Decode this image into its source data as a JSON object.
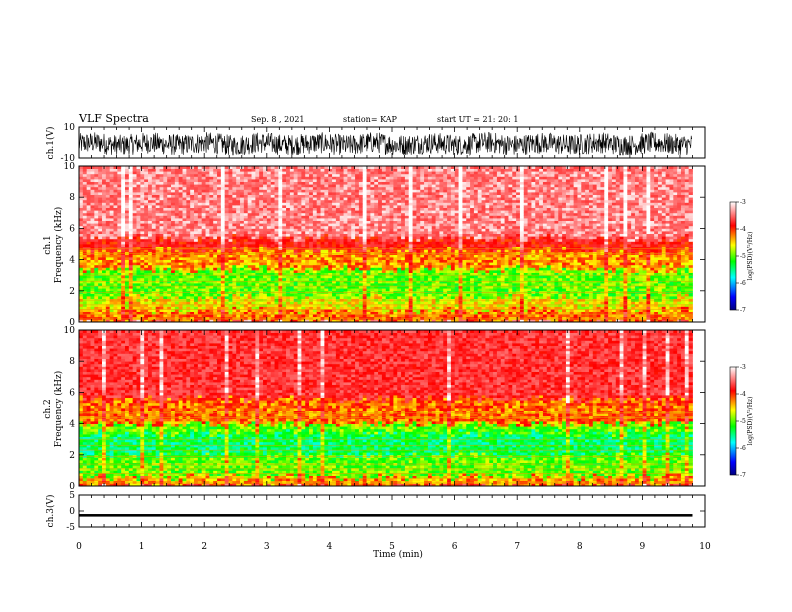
{
  "header": {
    "title": "VLF Spectra",
    "date": "Sep. 8 , 2021",
    "station": "station= KAP",
    "start": "start UT = 21: 20: 1"
  },
  "colorbar": {
    "label": "log(PSD)(V²/Hz)",
    "ticks": [
      "-3",
      "-4",
      "-5",
      "-6",
      "-7"
    ],
    "colors": [
      "#000080",
      "#0000ff",
      "#00ffff",
      "#00ff00",
      "#ffff00",
      "#ff0000",
      "#ffffff"
    ]
  },
  "chart_data": [
    {
      "type": "line",
      "panel": "ch1_waveform",
      "ylabel": "ch.1(V)",
      "ylim": [
        -10,
        10
      ],
      "yticks": [
        "10",
        "-10"
      ],
      "xlim": [
        0,
        10
      ],
      "description_values": {
        "y_range_observed": [
          -8,
          7
        ]
      }
    },
    {
      "type": "heatmap",
      "panel": "ch1_spectrogram",
      "ylabel": "ch.1\nFrequency (kHz)",
      "ylim": [
        0,
        10
      ],
      "yticks": [
        "0",
        "2",
        "4",
        "6",
        "8",
        "10"
      ],
      "xlim": [
        0,
        9.8
      ],
      "bands_khz": [
        {
          "from": 0,
          "to": 0.8,
          "level": -4.2
        },
        {
          "from": 0.8,
          "to": 1.6,
          "level": -4.6
        },
        {
          "from": 1.6,
          "to": 3.4,
          "level": -5.0
        },
        {
          "from": 3.4,
          "to": 4.6,
          "level": -4.3
        },
        {
          "from": 4.6,
          "to": 5.4,
          "level": -3.8
        },
        {
          "from": 5.4,
          "to": 10,
          "level": -3.2
        }
      ],
      "zlim": [
        -7,
        -3
      ]
    },
    {
      "type": "heatmap",
      "panel": "ch2_spectrogram",
      "ylabel": "ch.2\nFrequency (kHz)",
      "ylim": [
        0,
        10
      ],
      "yticks": [
        "0",
        "2",
        "4",
        "6",
        "8",
        "10"
      ],
      "xlim": [
        0,
        9.8
      ],
      "bands_khz": [
        {
          "from": 0,
          "to": 0.6,
          "level": -4.3
        },
        {
          "from": 0.6,
          "to": 2.0,
          "level": -5.0
        },
        {
          "from": 2.0,
          "to": 3.4,
          "level": -5.4
        },
        {
          "from": 3.4,
          "to": 4.0,
          "level": -5.0
        },
        {
          "from": 4.0,
          "to": 5.6,
          "level": -4.2
        },
        {
          "from": 5.6,
          "to": 10,
          "level": -3.6
        }
      ],
      "zlim": [
        -7,
        -3
      ]
    },
    {
      "type": "line",
      "panel": "ch3_waveform",
      "ylabel": "ch.3(V)",
      "ylim": [
        -5,
        5
      ],
      "yticks": [
        "5",
        "0",
        "-5"
      ],
      "xlim": [
        0,
        10
      ],
      "description_values": {
        "level": -1.3,
        "y_range_observed": [
          -1.8,
          -0.9
        ]
      }
    }
  ],
  "xaxis": {
    "label": "Time (min)",
    "ticks": [
      "0",
      "1",
      "2",
      "3",
      "4",
      "5",
      "6",
      "7",
      "8",
      "9",
      "10"
    ],
    "xlim": [
      0,
      10
    ]
  }
}
